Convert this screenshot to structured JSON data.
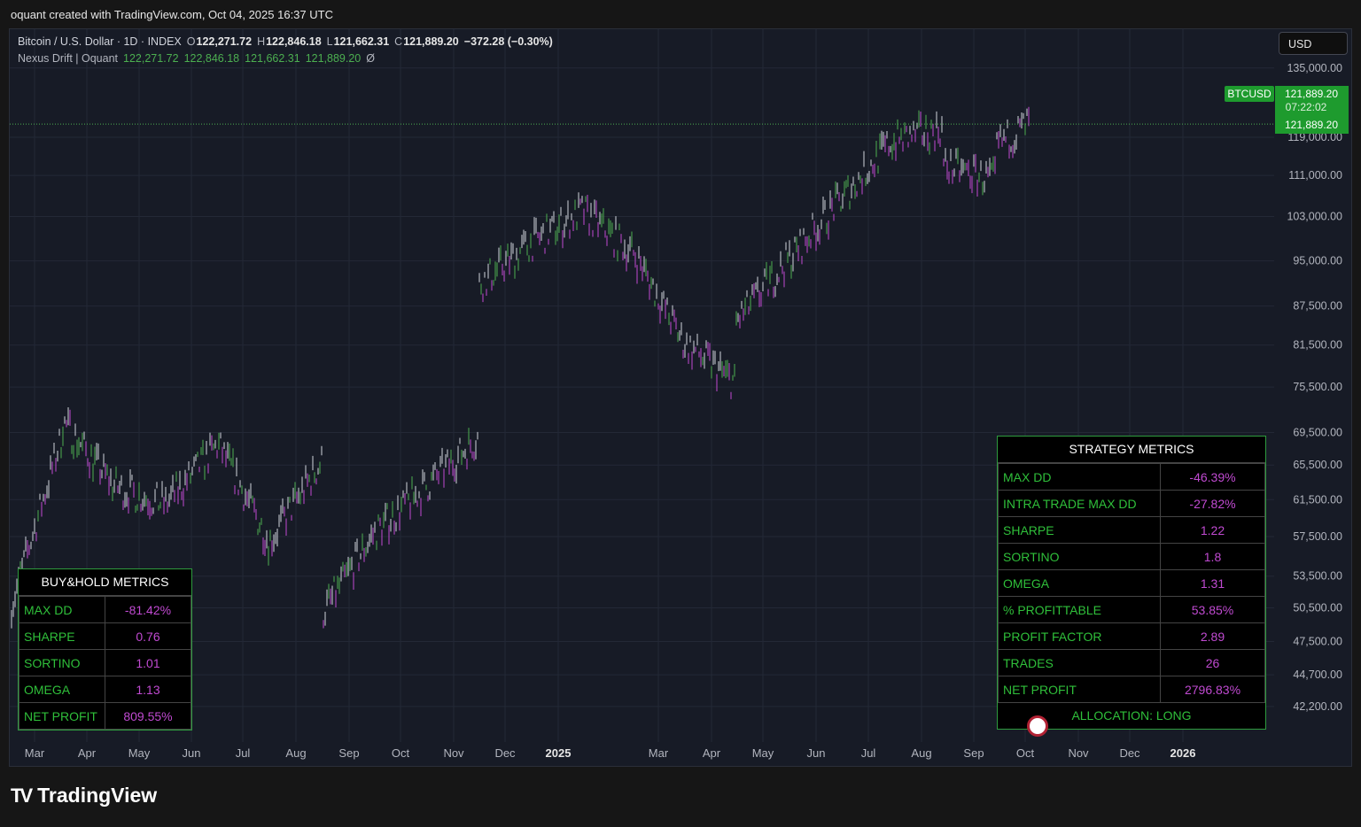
{
  "banner": "oquant created with TradingView.com, Oct 04, 2025 16:37 UTC",
  "legend": {
    "symbol": "Bitcoin / U.S. Dollar · 1D · INDEX",
    "o_label": "O",
    "o": "122,271.72",
    "h_label": "H",
    "h": "122,846.18",
    "l_label": "L",
    "l": "121,662.31",
    "c_label": "C",
    "c": "121,889.20",
    "change": "−372.28 (−0.30%)",
    "indicator": "Nexus Drift | Oquant",
    "ind_values": [
      "122,271.72",
      "122,846.18",
      "121,662.31",
      "121,889.20"
    ],
    "ind_extra": "Ø"
  },
  "currency": "USD",
  "price_label": {
    "ticker": "BTCUSD",
    "price": "121,889.20",
    "countdown": "07:22:02",
    "price2": "121,889.20"
  },
  "colors": {
    "bg": "#171b26",
    "up": "#4caf50",
    "down": "#c04ad1",
    "grid": "#232836",
    "accent": "#2fbf3a"
  },
  "chart_data": {
    "type": "bar",
    "subtype": "ohlc-price",
    "x_ticks": [
      "Mar",
      "Apr",
      "May",
      "Jun",
      "Jul",
      "Aug",
      "Sep",
      "Oct",
      "Nov",
      "Dec",
      "2025",
      "Mar",
      "Apr",
      "May",
      "Jun",
      "Jul",
      "Aug",
      "Sep",
      "Oct",
      "Nov",
      "Dec",
      "2026"
    ],
    "y_ticks": [
      "135,000.00",
      "119,000.00",
      "111,000.00",
      "103,000.00",
      "95,000.00",
      "87,500.00",
      "81,500.00",
      "75,500.00",
      "69,500.00",
      "65,500.00",
      "61,500.00",
      "57,500.00",
      "53,500.00",
      "50,500.00",
      "47,500.00",
      "44,700.00",
      "42,200.00"
    ],
    "y_scale": "log",
    "ylim": [
      40000,
      140000
    ],
    "series": [
      {
        "x": [
          "2024-02",
          "2024-03",
          "2024-03",
          "2024-04",
          "2024-05",
          "2024-06",
          "2024-07",
          "2024-08",
          "2024-08",
          "2024-09",
          "2024-10",
          "2024-11",
          "2024-11",
          "2024-12",
          "2025-01",
          "2025-02",
          "2025-03",
          "2025-04",
          "2025-04",
          "2025-05",
          "2025-06",
          "2025-07",
          "2025-08",
          "2025-08",
          "2025-09",
          "2025-09",
          "2025-10"
        ],
        "values": [
          51000,
          69000,
          71000,
          63000,
          61000,
          68000,
          57000,
          66000,
          50000,
          58000,
          63000,
          69000,
          91000,
          98000,
          104000,
          96000,
          82000,
          76000,
          85000,
          95000,
          106000,
          118000,
          121000,
          113000,
          110000,
          117000,
          122000
        ]
      }
    ],
    "last_price": 121889.2,
    "grid": true
  },
  "buyhold": {
    "title": "BUY&HOLD METRICS",
    "rows": [
      {
        "label": "MAX DD",
        "value": "-81.42%"
      },
      {
        "label": "SHARPE",
        "value": "0.76"
      },
      {
        "label": "SORTINO",
        "value": "1.01"
      },
      {
        "label": "OMEGA",
        "value": "1.13"
      },
      {
        "label": "NET PROFIT",
        "value": "809.55%"
      }
    ]
  },
  "strategy": {
    "title": "STRATEGY METRICS",
    "rows": [
      {
        "label": "MAX DD",
        "value": "-46.39%"
      },
      {
        "label": "INTRA TRADE MAX DD",
        "value": "-27.82%"
      },
      {
        "label": "SHARPE",
        "value": "1.22"
      },
      {
        "label": "SORTINO",
        "value": "1.8"
      },
      {
        "label": "OMEGA",
        "value": "1.31"
      },
      {
        "label": "% PROFITTABLE",
        "value": "53.85%"
      },
      {
        "label": "PROFIT FACTOR",
        "value": "2.89"
      },
      {
        "label": "TRADES",
        "value": "26"
      },
      {
        "label": "NET PROFIT",
        "value": "2796.83%"
      }
    ],
    "allocation": "ALLOCATION: LONG"
  },
  "logo": {
    "mark": "TV",
    "text": "TradingView"
  }
}
